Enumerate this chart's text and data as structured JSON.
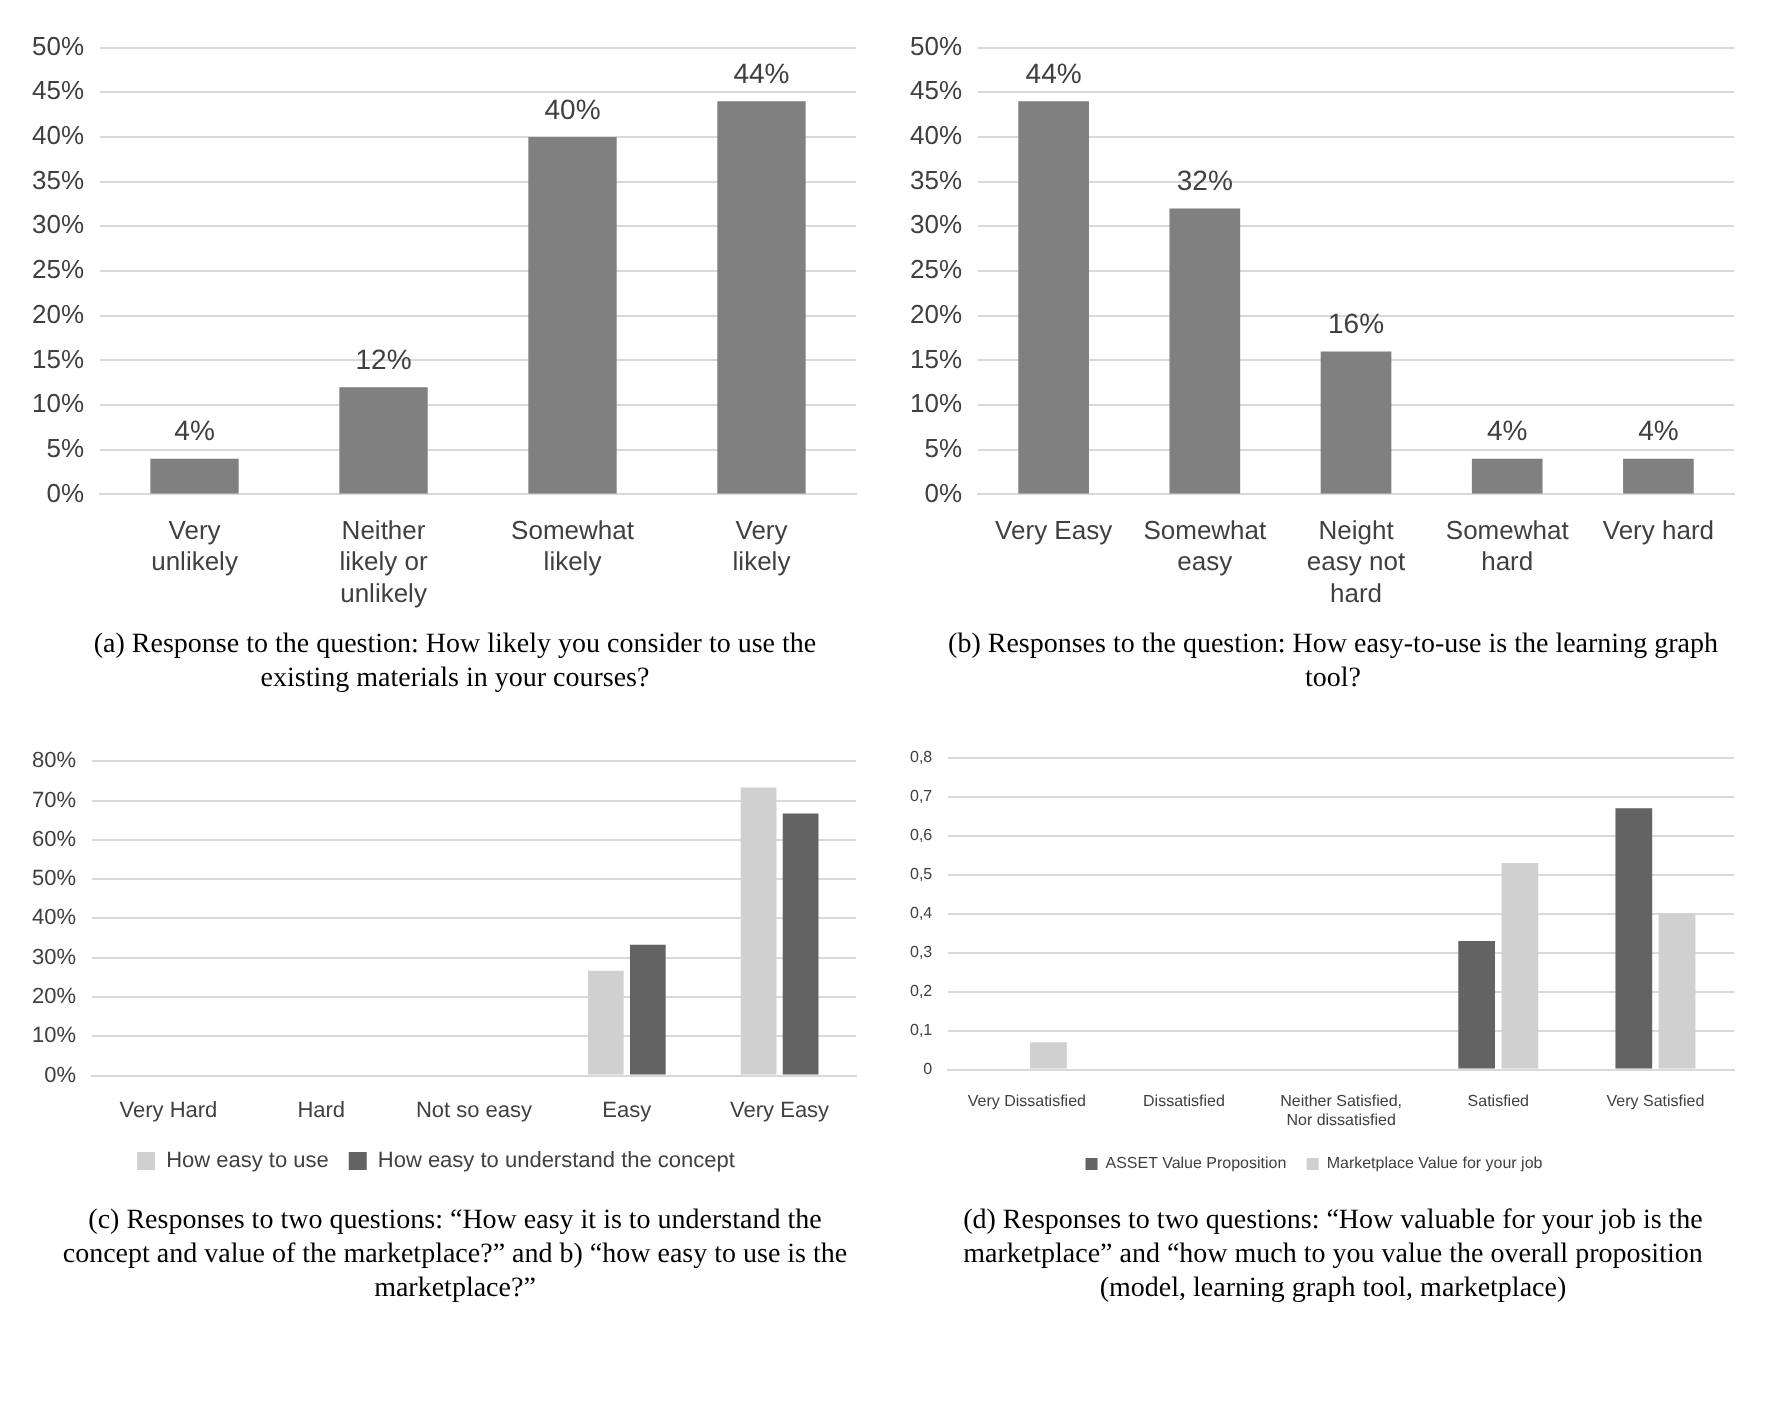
{
  "chart_data": [
    {
      "type": "bar",
      "categories": [
        "Very unlikely",
        "Neither likely or unlikely",
        "Somewhat likely",
        "Very likely"
      ],
      "values": [
        4,
        12,
        40,
        44
      ],
      "value_labels": [
        "4%",
        "12%",
        "40%",
        "44%"
      ],
      "color": "#808080",
      "ylim": [
        0,
        50
      ],
      "yticks": [
        {
          "value": 0,
          "label": "0%"
        },
        {
          "value": 5,
          "label": "5%"
        },
        {
          "value": 10,
          "label": "10%"
        },
        {
          "value": 15,
          "label": "15%"
        },
        {
          "value": 20,
          "label": "20%"
        },
        {
          "value": 25,
          "label": "25%"
        },
        {
          "value": 30,
          "label": "30%"
        },
        {
          "value": 35,
          "label": "35%"
        },
        {
          "value": 40,
          "label": "40%"
        },
        {
          "value": 45,
          "label": "45%"
        },
        {
          "value": 50,
          "label": "50%"
        }
      ],
      "grid": "y",
      "legend": false,
      "annotations": [
        "(a) Response to the question: How likely you consider to use the existing materials in your courses?"
      ]
    },
    {
      "type": "bar",
      "categories": [
        "Very Easy",
        "Somewhat easy",
        "Neight easy not hard",
        "Somewhat hard",
        "Very hard"
      ],
      "values": [
        44,
        32,
        16,
        4,
        4
      ],
      "value_labels": [
        "44%",
        "32%",
        "16%",
        "4%",
        "4%"
      ],
      "color": "#808080",
      "ylim": [
        0,
        50
      ],
      "yticks": [
        {
          "value": 0,
          "label": "0%"
        },
        {
          "value": 5,
          "label": "5%"
        },
        {
          "value": 10,
          "label": "10%"
        },
        {
          "value": 15,
          "label": "15%"
        },
        {
          "value": 20,
          "label": "20%"
        },
        {
          "value": 25,
          "label": "25%"
        },
        {
          "value": 30,
          "label": "30%"
        },
        {
          "value": 35,
          "label": "35%"
        },
        {
          "value": 40,
          "label": "40%"
        },
        {
          "value": 45,
          "label": "45%"
        },
        {
          "value": 50,
          "label": "50%"
        }
      ],
      "grid": "y",
      "legend": false,
      "annotations": [
        "(b) Responses to the question: How easy-to-use is the learning graph tool?"
      ]
    },
    {
      "type": "bar",
      "categories": [
        "Very Hard",
        "Hard",
        "Not so easy",
        "Easy",
        "Very Easy"
      ],
      "series": [
        {
          "name": "How easy to use",
          "color": "#d0d0d0",
          "values": [
            0,
            0,
            0,
            26.7,
            73.3
          ]
        },
        {
          "name": "How easy to understand the concept",
          "color": "#636363",
          "values": [
            0,
            0,
            0,
            33.3,
            66.7
          ]
        }
      ],
      "ylim": [
        0,
        80
      ],
      "yticks": [
        {
          "value": 0,
          "label": "0%"
        },
        {
          "value": 10,
          "label": "10%"
        },
        {
          "value": 20,
          "label": "20%"
        },
        {
          "value": 30,
          "label": "30%"
        },
        {
          "value": 40,
          "label": "40%"
        },
        {
          "value": 50,
          "label": "50%"
        },
        {
          "value": 60,
          "label": "60%"
        },
        {
          "value": 70,
          "label": "70%"
        },
        {
          "value": 80,
          "label": "80%"
        }
      ],
      "grid": "y",
      "legend": "bottom",
      "annotations": [
        "(c) Responses to two questions: “How easy it is to understand the concept and value of the marketplace?” and b) “how easy to use is the marketplace?”"
      ]
    },
    {
      "type": "bar",
      "categories": [
        "Very Dissatisfied",
        "Dissatisfied",
        "Neither Satisfied, Nor dissatisfied",
        "Satisfied",
        "Very Satisfied"
      ],
      "series": [
        {
          "name": "ASSET Value Proposition",
          "color": "#636363",
          "values": [
            0,
            0,
            0,
            0.33,
            0.67
          ]
        },
        {
          "name": "Marketplace Value for your job",
          "color": "#d0d0d0",
          "values": [
            0.07,
            0,
            0,
            0.53,
            0.4
          ]
        }
      ],
      "ylim": [
        0,
        0.8
      ],
      "yticks": [
        0,
        {
          "value": 0.1,
          "label": "0,1"
        },
        {
          "value": 0.2,
          "label": "0,2"
        },
        {
          "value": 0.3,
          "label": "0,3"
        },
        {
          "value": 0.4,
          "label": "0,4"
        },
        {
          "value": 0.5,
          "label": "0,5"
        },
        {
          "value": 0.6,
          "label": "0,6"
        },
        {
          "value": 0.7,
          "label": "0,7"
        },
        {
          "value": 0.8,
          "label": "0,8"
        }
      ],
      "grid": "y",
      "legend": "bottom",
      "annotations": [
        "(d) Responses to two questions: “How valuable for your job is the marketplace” and “how much to you value the overall proposition (model, learning graph tool, marketplace)"
      ]
    }
  ]
}
